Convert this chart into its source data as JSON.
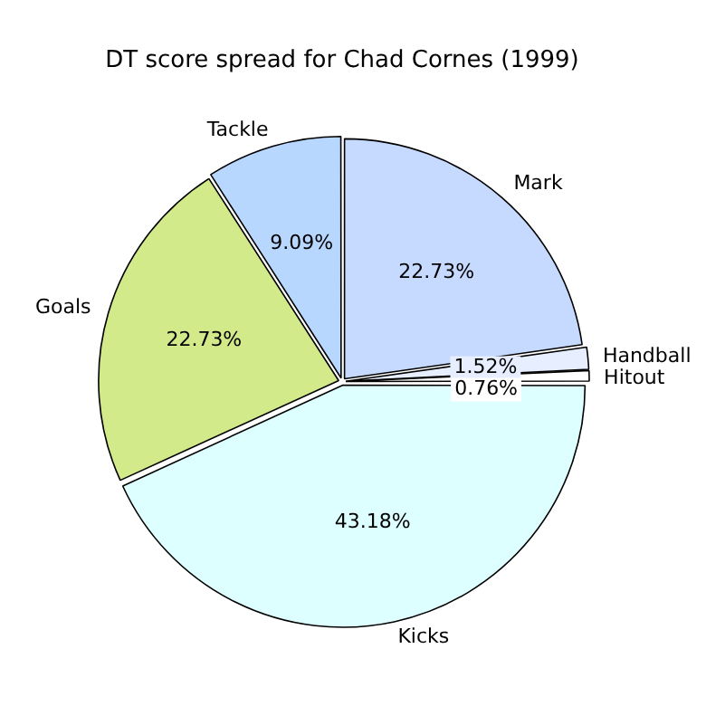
{
  "chart_data": {
    "type": "pie",
    "title": "DT score spread for Chad Cornes (1999)",
    "categories": [
      "Mark",
      "Handball",
      "Hitout",
      "Kicks",
      "Goals",
      "Tackle"
    ],
    "values": [
      22.73,
      1.52,
      0.76,
      43.18,
      22.73,
      9.09
    ],
    "colors": [
      "#c6d9ff",
      "#e6eeff",
      "#ffffff",
      "#ddffff",
      "#d2ea8a",
      "#b7d7ff"
    ],
    "value_labels": [
      "22.73%",
      "1.52%",
      "0.76%",
      "43.18%",
      "22.73%",
      "9.09%"
    ],
    "legend": false
  }
}
